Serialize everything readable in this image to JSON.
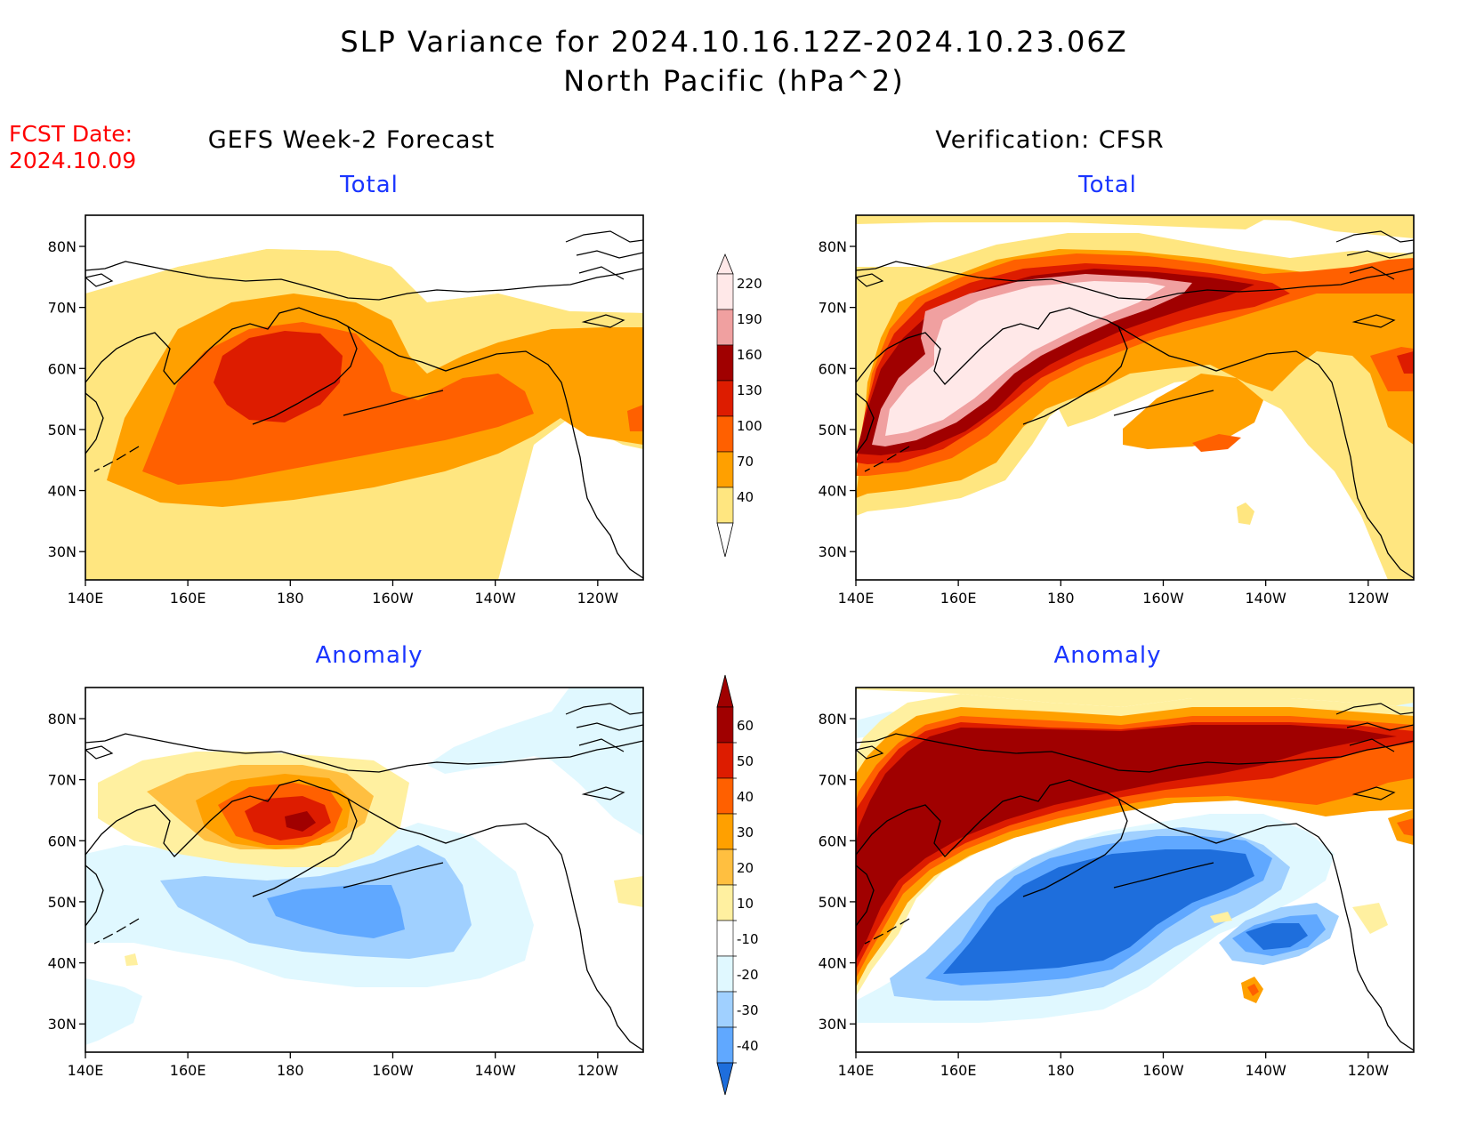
{
  "title": {
    "line1": "SLP Variance for 2024.10.16.12Z-2024.10.23.06Z",
    "line2": "North Pacific (hPa^2)"
  },
  "forecast_date": {
    "label": "FCST Date:",
    "value": "2024.10.09"
  },
  "columns": {
    "left": "GEFS Week-2 Forecast",
    "right": "Verification: CFSR"
  },
  "panels": {
    "top_left_title": "Total",
    "top_right_title": "Total",
    "bottom_left_title": "Anomaly",
    "bottom_right_title": "Anomaly"
  },
  "axes": {
    "lon_ticks": [
      "140E",
      "160E",
      "180",
      "160W",
      "140W",
      "120W"
    ],
    "lat_ticks": [
      "80N",
      "70N",
      "60N",
      "50N",
      "40N",
      "30N"
    ]
  },
  "colorbars": {
    "total": {
      "levels": [
        "220",
        "190",
        "160",
        "130",
        "100",
        "70",
        "40"
      ],
      "colors": [
        "#ffe8e8",
        "#f0a0a0",
        "#a00000",
        "#dd1c00",
        "#ff6000",
        "#ffa000",
        "#ffe680"
      ]
    },
    "anomaly": {
      "levels": [
        "60",
        "50",
        "40",
        "30",
        "20",
        "10",
        "-10",
        "-20",
        "-30",
        "-40"
      ],
      "colors": [
        "#a00000",
        "#dd1c00",
        "#ff6000",
        "#ffa000",
        "#ffbf40",
        "#fff0a0",
        "#ffffff",
        "#e0f8ff",
        "#a0d0ff",
        "#60a8ff",
        "#1e6edc"
      ]
    }
  }
}
